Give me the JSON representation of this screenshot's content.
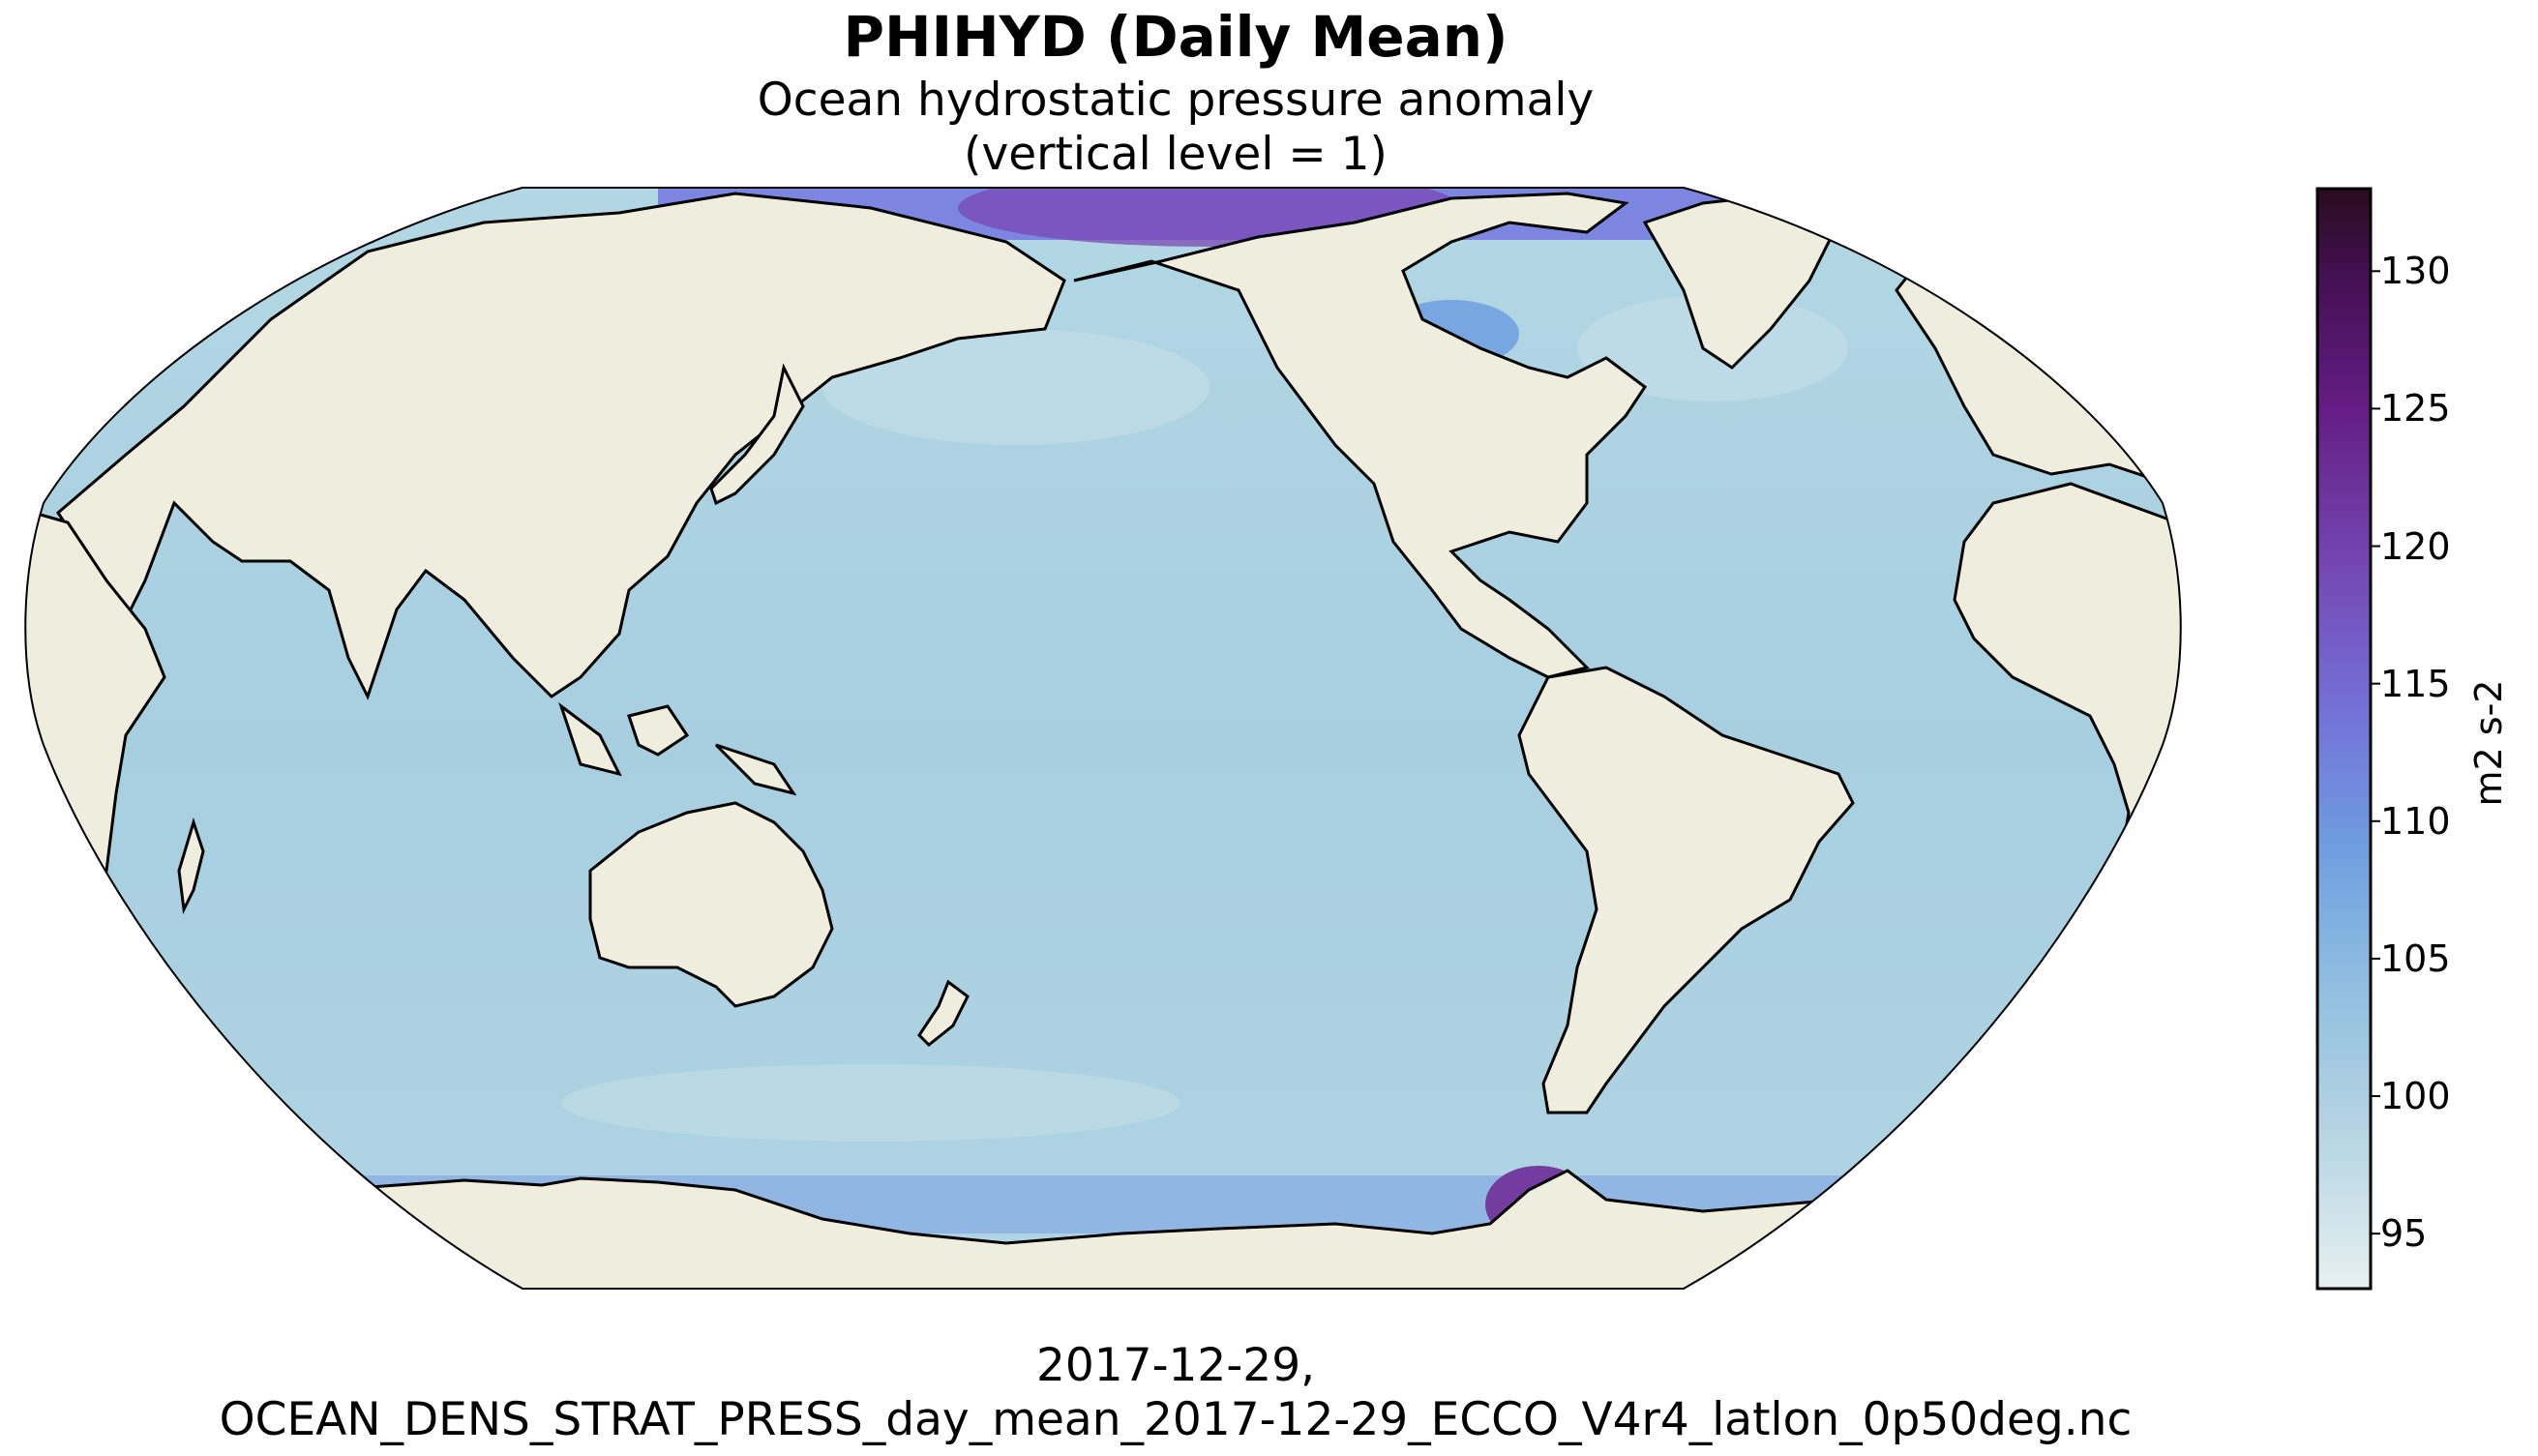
{
  "title": "PHIHYD (Daily Mean)",
  "subtitle": [
    "Ocean hydrostatic pressure anomaly",
    "(vertical level = 1)"
  ],
  "caption": [
    "2017-12-29,",
    "OCEAN_DENS_STRAT_PRESS_day_mean_2017-12-29_ECCO_V4r4_latlon_0p50deg.nc"
  ],
  "map": {
    "projection": "Robinson",
    "central_longitude": 180,
    "land_color": "#efedde",
    "coastline_color": "#000000",
    "ocean_colormap": "dense"
  },
  "colorbar": {
    "label": "m2 s-2",
    "range": [
      93,
      133
    ],
    "ticks": [
      "130",
      "125",
      "120",
      "115",
      "110",
      "105",
      "100",
      "95"
    ],
    "tick_values": [
      130,
      125,
      120,
      115,
      110,
      105,
      100,
      95
    ],
    "colors": [
      "#e6f0f1",
      "#b6d5e3",
      "#90bde0",
      "#6f9ee0",
      "#7373d8",
      "#7446b2",
      "#641d84",
      "#441053",
      "#2a0c1f"
    ]
  }
}
